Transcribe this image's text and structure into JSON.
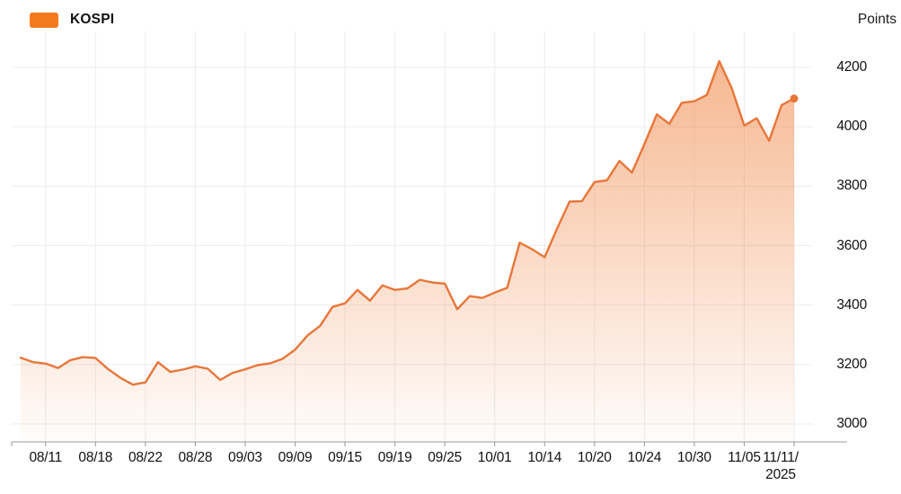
{
  "legend": {
    "label": "KOSPI",
    "swatch_color": "#F5791D"
  },
  "axis": {
    "unit_label": "Points"
  },
  "colors": {
    "line": "#E8763A",
    "fill_base": "#EF7B33",
    "grid": "#ECECEC",
    "axis_line": "#999999",
    "label_text": "#111111"
  },
  "chart_data": {
    "type": "area",
    "series_name": "KOSPI",
    "unit": "Points",
    "legend_position": "top-left",
    "grid": true,
    "ylim": [
      3000,
      4200
    ],
    "y_ticks": [
      3000,
      3200,
      3400,
      3600,
      3800,
      4000,
      4200
    ],
    "x_tick_labels": [
      "08/11",
      "08/18",
      "08/22",
      "08/28",
      "09/03",
      "09/09",
      "09/15",
      "09/19",
      "09/25",
      "10/01",
      "10/14",
      "10/20",
      "10/24",
      "10/30",
      "11/05",
      "11/11/2025"
    ],
    "x_tick_indices": [
      2,
      6,
      10,
      14,
      18,
      22,
      26,
      30,
      34,
      38,
      42,
      46,
      50,
      54,
      58,
      62
    ],
    "x": [
      "08/07",
      "08/08",
      "08/11",
      "08/12",
      "08/13",
      "08/14",
      "08/18",
      "08/19",
      "08/20",
      "08/21",
      "08/22",
      "08/25",
      "08/26",
      "08/27",
      "08/28",
      "08/29",
      "09/01",
      "09/02",
      "09/03",
      "09/04",
      "09/05",
      "09/08",
      "09/09",
      "09/10",
      "09/11",
      "09/12",
      "09/15",
      "09/16",
      "09/17",
      "09/18",
      "09/19",
      "09/22",
      "09/23",
      "09/24",
      "09/25",
      "09/26",
      "09/29",
      "09/30",
      "10/01",
      "10/02",
      "10/10",
      "10/13",
      "10/14",
      "10/15",
      "10/16",
      "10/17",
      "10/20",
      "10/21",
      "10/22",
      "10/23",
      "10/24",
      "10/27",
      "10/28",
      "10/29",
      "10/30",
      "10/31",
      "11/03",
      "11/04",
      "11/05",
      "11/06",
      "11/07",
      "11/10",
      "11/11"
    ],
    "values": [
      3223,
      3208,
      3203,
      3188,
      3215,
      3225,
      3222,
      3185,
      3155,
      3132,
      3140,
      3208,
      3175,
      3183,
      3194,
      3186,
      3148,
      3172,
      3184,
      3198,
      3204,
      3219,
      3250,
      3298,
      3330,
      3394,
      3406,
      3451,
      3415,
      3466,
      3451,
      3456,
      3485,
      3476,
      3472,
      3386,
      3430,
      3424,
      3442,
      3458,
      3610,
      3588,
      3561,
      3657,
      3748,
      3750,
      3814,
      3820,
      3885,
      3846,
      3942,
      4042,
      4010,
      4081,
      4086,
      4107,
      4221,
      4130,
      4004,
      4029,
      3953,
      4073,
      4095
    ],
    "last_point_marker": true,
    "last_value": 4095
  }
}
